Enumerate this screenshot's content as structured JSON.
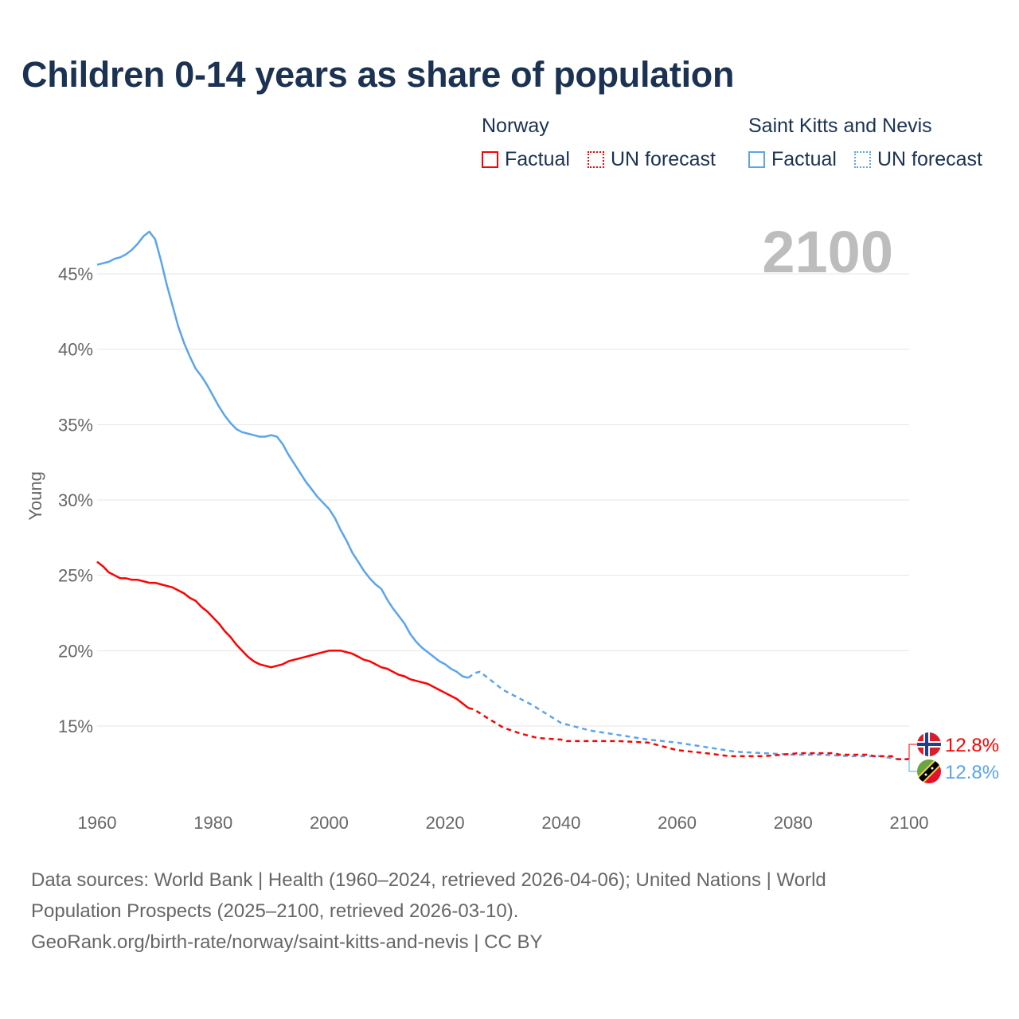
{
  "title": "Children 0-14 years as share of population",
  "legend": [
    {
      "country": "Norway",
      "color": "#ff0000",
      "factual_label": "Factual",
      "forecast_label": "UN forecast"
    },
    {
      "country": "Saint Kitts and Nevis",
      "color": "#5aa5ec",
      "factual_label": "Factual",
      "forecast_label": "UN forecast"
    }
  ],
  "year_label": "2100",
  "chart_data": {
    "type": "line",
    "title": "Children 0-14 years as share of population",
    "xlabel": "",
    "ylabel": "Young",
    "xlim": [
      1960,
      2100
    ],
    "ylim": [
      10,
      48
    ],
    "grid": true,
    "x_ticks": [
      1960,
      1980,
      2000,
      2020,
      2040,
      2060,
      2080,
      2100
    ],
    "x_tick_labels": [
      "1960",
      "1980",
      "2000",
      "2020",
      "2040",
      "2060",
      "2080",
      "2100"
    ],
    "y_ticks": [
      15,
      20,
      25,
      30,
      35,
      40,
      45
    ],
    "y_tick_labels": [
      "15%",
      "20%",
      "25%",
      "30%",
      "35%",
      "40%",
      "45%"
    ],
    "legend_position": "top-right",
    "series": [
      {
        "name": "Norway",
        "color": "#ff0000",
        "end_label": "12.8%",
        "factual": {
          "x": [
            1960,
            1961,
            1962,
            1963,
            1964,
            1965,
            1966,
            1967,
            1968,
            1969,
            1970,
            1971,
            1972,
            1973,
            1974,
            1975,
            1976,
            1977,
            1978,
            1979,
            1980,
            1981,
            1982,
            1983,
            1984,
            1985,
            1986,
            1987,
            1988,
            1989,
            1990,
            1991,
            1992,
            1993,
            1994,
            1995,
            1996,
            1997,
            1998,
            1999,
            2000,
            2001,
            2002,
            2003,
            2004,
            2005,
            2006,
            2007,
            2008,
            2009,
            2010,
            2011,
            2012,
            2013,
            2014,
            2015,
            2016,
            2017,
            2018,
            2019,
            2020,
            2021,
            2022,
            2023,
            2024
          ],
          "y": [
            25.9,
            25.6,
            25.2,
            25.0,
            24.8,
            24.8,
            24.7,
            24.7,
            24.6,
            24.5,
            24.5,
            24.4,
            24.3,
            24.2,
            24.0,
            23.8,
            23.5,
            23.3,
            22.9,
            22.6,
            22.2,
            21.8,
            21.3,
            20.9,
            20.4,
            20.0,
            19.6,
            19.3,
            19.1,
            19.0,
            18.9,
            19.0,
            19.1,
            19.3,
            19.4,
            19.5,
            19.6,
            19.7,
            19.8,
            19.9,
            20.0,
            20.0,
            20.0,
            19.9,
            19.8,
            19.6,
            19.4,
            19.3,
            19.1,
            18.9,
            18.8,
            18.6,
            18.4,
            18.3,
            18.1,
            18.0,
            17.9,
            17.8,
            17.6,
            17.4,
            17.2,
            17.0,
            16.8,
            16.5,
            16.2
          ]
        },
        "forecast": {
          "x": [
            2024,
            2025,
            2027,
            2030,
            2033,
            2036,
            2040,
            2041,
            2050,
            2055,
            2060,
            2065,
            2069,
            2075,
            2078,
            2081,
            2087,
            2088,
            2093,
            2094,
            2097,
            2098,
            2100
          ],
          "y": [
            16.2,
            16.1,
            15.6,
            14.9,
            14.5,
            14.2,
            14.1,
            14.0,
            14.0,
            13.9,
            13.4,
            13.2,
            13.0,
            13.0,
            13.1,
            13.2,
            13.2,
            13.1,
            13.1,
            13.0,
            13.0,
            12.8,
            12.8
          ]
        }
      },
      {
        "name": "Saint Kitts and Nevis",
        "color": "#5aa5ec",
        "end_label": "12.8%",
        "factual": {
          "x": [
            1960,
            1961,
            1962,
            1963,
            1964,
            1965,
            1966,
            1967,
            1968,
            1969,
            1970,
            1971,
            1972,
            1973,
            1974,
            1975,
            1976,
            1977,
            1978,
            1979,
            1980,
            1981,
            1982,
            1983,
            1984,
            1985,
            1986,
            1987,
            1988,
            1989,
            1990,
            1991,
            1992,
            1993,
            1994,
            1995,
            1996,
            1997,
            1998,
            1999,
            2000,
            2001,
            2002,
            2003,
            2004,
            2005,
            2006,
            2007,
            2008,
            2009,
            2010,
            2011,
            2012,
            2013,
            2014,
            2015,
            2016,
            2017,
            2018,
            2019,
            2020,
            2021,
            2022,
            2023,
            2024
          ],
          "y": [
            45.6,
            45.7,
            45.8,
            46.0,
            46.1,
            46.3,
            46.6,
            47.0,
            47.5,
            47.8,
            47.3,
            45.9,
            44.3,
            42.9,
            41.5,
            40.4,
            39.5,
            38.7,
            38.2,
            37.6,
            36.9,
            36.2,
            35.6,
            35.1,
            34.7,
            34.5,
            34.4,
            34.3,
            34.2,
            34.2,
            34.3,
            34.2,
            33.7,
            33.0,
            32.4,
            31.8,
            31.2,
            30.7,
            30.2,
            29.8,
            29.4,
            28.8,
            28.0,
            27.3,
            26.5,
            25.9,
            25.3,
            24.8,
            24.4,
            24.1,
            23.4,
            22.8,
            22.3,
            21.8,
            21.1,
            20.6,
            20.2,
            19.9,
            19.6,
            19.3,
            19.1,
            18.8,
            18.6,
            18.3,
            18.2
          ]
        },
        "forecast": {
          "x": [
            2024,
            2025,
            2026,
            2030,
            2035,
            2040,
            2045,
            2050,
            2055,
            2060,
            2065,
            2070,
            2075,
            2080,
            2085,
            2090,
            2095,
            2098,
            2100
          ],
          "y": [
            18.2,
            18.5,
            18.6,
            17.4,
            16.4,
            15.2,
            14.7,
            14.4,
            14.1,
            13.9,
            13.6,
            13.3,
            13.2,
            13.1,
            13.1,
            13.0,
            13.0,
            12.8,
            12.8
          ]
        }
      }
    ]
  },
  "footer": {
    "line1": "Data sources: World Bank | Health (1960–2024, retrieved 2026-04-06); United Nations | World",
    "line2": "Population Prospects (2025–2100, retrieved 2026-03-10).",
    "line3": "GeoRank.org/birth-rate/norway/saint-kitts-and-nevis | CC BY"
  }
}
